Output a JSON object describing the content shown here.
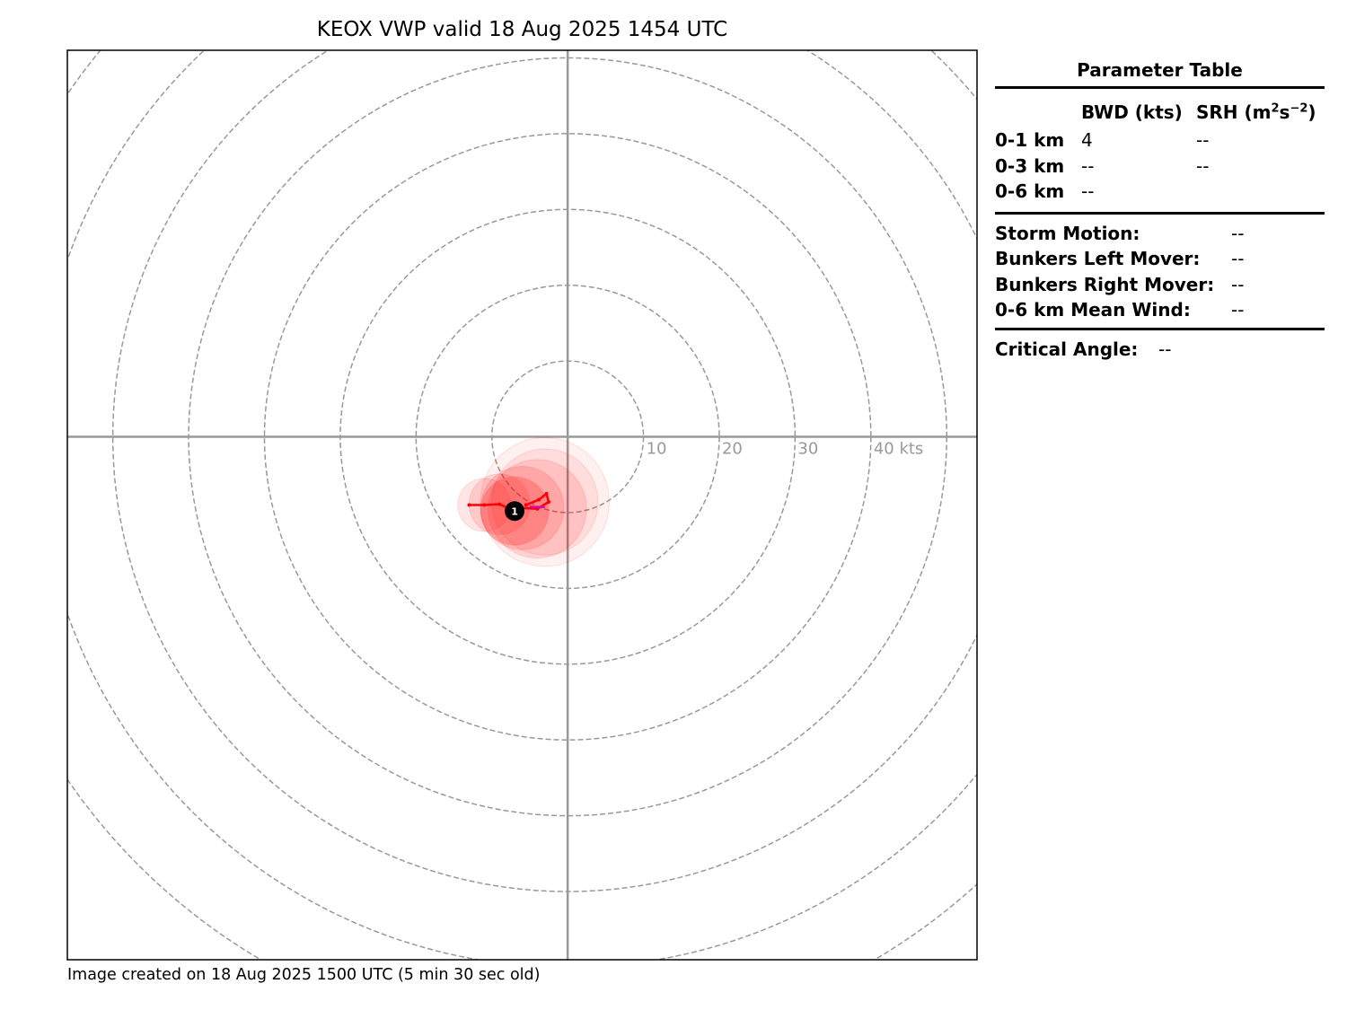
{
  "chart_data": {
    "type": "hodograph",
    "title": "KEOX VWP valid 18 Aug 2025 1454 UTC",
    "units": "kts",
    "range_rings": [
      10,
      20,
      30,
      40,
      50,
      60,
      70,
      80
    ],
    "ring_labels": [
      "10",
      "20",
      "30",
      "40 kts"
    ],
    "u_range": [
      -66,
      54
    ],
    "v_range": [
      -69,
      51
    ],
    "grid": "dashed range rings",
    "hodograph": {
      "color": "#ff0000",
      "points": [
        {
          "u": -13,
          "v": -9.0
        },
        {
          "u": -11,
          "v": -9.0
        },
        {
          "u": -9,
          "v": -8.9
        },
        {
          "u": -7,
          "v": -9.8
        },
        {
          "u": -6,
          "v": -9.4
        },
        {
          "u": -4,
          "v": -9.5
        },
        {
          "u": -2.5,
          "v": -8.6
        },
        {
          "u": -2.8,
          "v": -7.5
        },
        {
          "u": -3.8,
          "v": -8.3
        },
        {
          "u": -5.5,
          "v": -9.0
        }
      ],
      "tail_color": "#cc00cc",
      "tail": [
        {
          "u": -5.0,
          "v": -9.2
        },
        {
          "u": -3.0,
          "v": -9.3
        }
      ]
    },
    "uncertainty_circles": [
      {
        "u": -11,
        "v": -9.0,
        "r": 3.5,
        "opacity": 0.1
      },
      {
        "u": -9,
        "v": -8.9,
        "r": 4.0,
        "opacity": 0.12
      },
      {
        "u": -7,
        "v": -9.8,
        "r": 4.5,
        "opacity": 0.2
      },
      {
        "u": -6,
        "v": -9.4,
        "r": 5.5,
        "opacity": 0.14
      },
      {
        "u": -4,
        "v": -9.5,
        "r": 6.5,
        "opacity": 0.12
      },
      {
        "u": -3,
        "v": -8.6,
        "r": 7.0,
        "opacity": 0.08
      },
      {
        "u": -3,
        "v": -8.6,
        "r": 8.5,
        "opacity": 0.06
      }
    ],
    "markers": [
      {
        "label": "1",
        "u": -7,
        "v": -9.8
      }
    ]
  },
  "parameter_table": {
    "title": "Parameter Table",
    "col_bwd": "BWD (kts)",
    "col_srh_main": "SRH (m",
    "col_srh_sup1": "2",
    "col_srh_mid": "s",
    "col_srh_sup2": "−2",
    "col_srh_close": ")",
    "rows": [
      {
        "layer": "0-1 km",
        "bwd": "4",
        "srh": "--"
      },
      {
        "layer": "0-3 km",
        "bwd": "--",
        "srh": "--"
      },
      {
        "layer": "0-6 km",
        "bwd": "--",
        "srh": ""
      }
    ],
    "motions": [
      {
        "label": "Storm Motion:",
        "value": "--"
      },
      {
        "label": "Bunkers Left Mover:",
        "value": "--"
      },
      {
        "label": "Bunkers Right Mover:",
        "value": "--"
      },
      {
        "label": "0-6 km Mean Wind:",
        "value": "--"
      }
    ],
    "critical_angle_label": "Critical Angle:",
    "critical_angle_value": "--"
  },
  "footer": "Image created on 18 Aug 2025 1500 UTC (5 min 30 sec old)"
}
